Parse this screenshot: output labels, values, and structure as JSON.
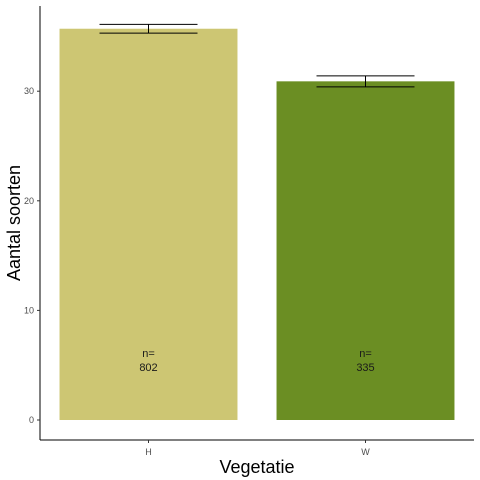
{
  "chart_data": {
    "type": "bar",
    "categories": [
      "H",
      "W"
    ],
    "values": [
      35.7,
      30.9
    ],
    "error_bars": [
      {
        "lower": 35.3,
        "upper": 36.1
      },
      {
        "lower": 30.4,
        "upper": 31.4
      }
    ],
    "bar_annotations": [
      {
        "line1": "n=",
        "line2": "802"
      },
      {
        "line1": "n=",
        "line2": "335"
      }
    ],
    "bar_colors": [
      "#cdc673",
      "#6b8e23"
    ],
    "xlabel": "Vegetatie",
    "ylabel": "Aantal soorten",
    "yticks": [
      0,
      10,
      20,
      30
    ],
    "ylim": [
      0,
      37.6
    ],
    "grid": false,
    "legend": "none"
  }
}
